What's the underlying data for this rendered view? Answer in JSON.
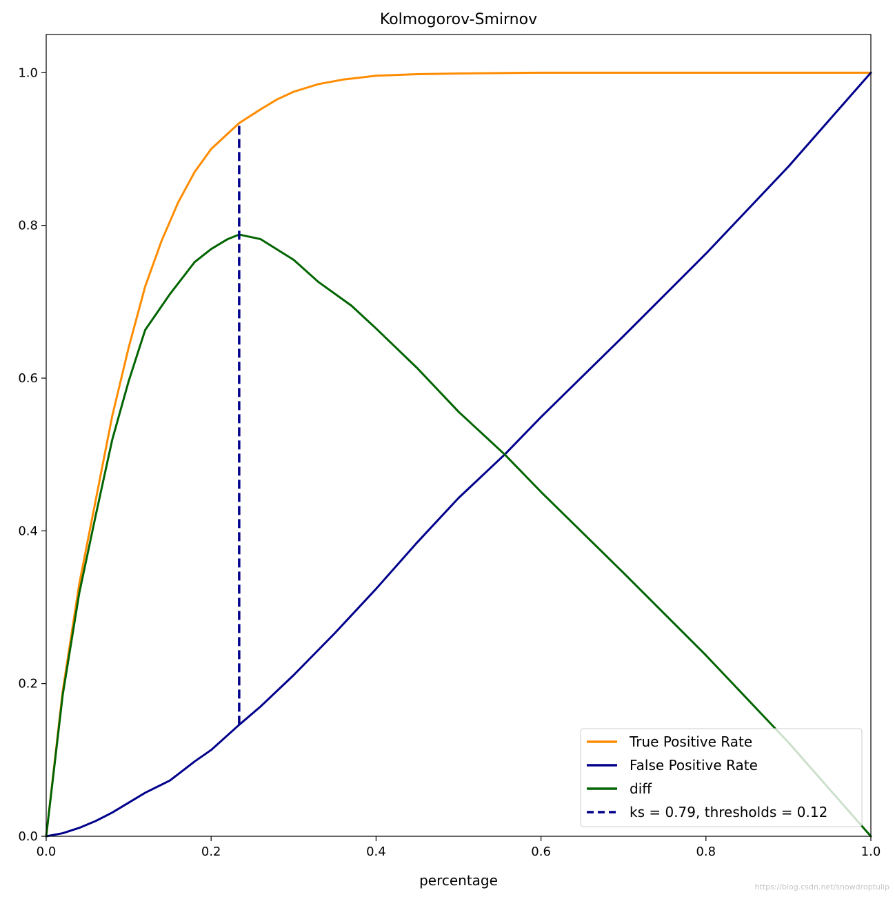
{
  "chart_data": {
    "type": "line",
    "title": "Kolmogorov-Smirnov",
    "xlabel": "percentage",
    "ylabel": "",
    "xlim": [
      0,
      1
    ],
    "ylim": [
      0,
      1.05
    ],
    "x_ticks": [
      "0.0",
      "0.2",
      "0.4",
      "0.6",
      "0.8",
      "1.0"
    ],
    "y_ticks": [
      "0.0",
      "0.2",
      "0.4",
      "0.6",
      "0.8",
      "1.0"
    ],
    "grid": false,
    "legend_position": "bottom-right",
    "series": [
      {
        "name": "True Positive Rate",
        "color": "#ff8c00",
        "style": "solid",
        "x": [
          0,
          0.02,
          0.04,
          0.06,
          0.08,
          0.1,
          0.12,
          0.14,
          0.16,
          0.18,
          0.2,
          0.22,
          0.234,
          0.26,
          0.28,
          0.3,
          0.33,
          0.36,
          0.4,
          0.45,
          0.5,
          0.6,
          0.8,
          1.0
        ],
        "y": [
          0,
          0.19,
          0.33,
          0.44,
          0.55,
          0.64,
          0.72,
          0.78,
          0.83,
          0.87,
          0.9,
          0.92,
          0.934,
          0.952,
          0.965,
          0.975,
          0.985,
          0.991,
          0.996,
          0.998,
          0.999,
          1.0,
          1.0,
          1.0
        ]
      },
      {
        "name": "False Positive Rate",
        "color": "#00008b",
        "style": "solid",
        "x": [
          0,
          0.02,
          0.04,
          0.06,
          0.08,
          0.1,
          0.12,
          0.15,
          0.18,
          0.2,
          0.234,
          0.26,
          0.3,
          0.35,
          0.4,
          0.45,
          0.5,
          0.556,
          0.6,
          0.7,
          0.8,
          0.9,
          1.0
        ],
        "y": [
          0,
          0.004,
          0.011,
          0.02,
          0.031,
          0.044,
          0.057,
          0.073,
          0.098,
          0.113,
          0.146,
          0.17,
          0.211,
          0.266,
          0.324,
          0.385,
          0.443,
          0.5,
          0.549,
          0.655,
          0.763,
          0.877,
          1.0
        ]
      },
      {
        "name": "diff",
        "color": "#006400",
        "style": "solid",
        "x": [
          0,
          0.02,
          0.04,
          0.06,
          0.08,
          0.1,
          0.12,
          0.15,
          0.18,
          0.2,
          0.22,
          0.234,
          0.26,
          0.3,
          0.33,
          0.37,
          0.4,
          0.45,
          0.5,
          0.556,
          0.6,
          0.7,
          0.8,
          0.9,
          1.0
        ],
        "y": [
          0,
          0.185,
          0.318,
          0.42,
          0.519,
          0.596,
          0.663,
          0.71,
          0.752,
          0.769,
          0.782,
          0.788,
          0.782,
          0.755,
          0.726,
          0.695,
          0.665,
          0.613,
          0.556,
          0.5,
          0.451,
          0.345,
          0.237,
          0.123,
          0
        ]
      }
    ],
    "ks_line": {
      "label": "ks = 0.79, thresholds = 0.12",
      "color": "#00008b",
      "style": "dashed",
      "x": 0.234,
      "y_from": 0.146,
      "y_to": 0.934
    }
  }
}
